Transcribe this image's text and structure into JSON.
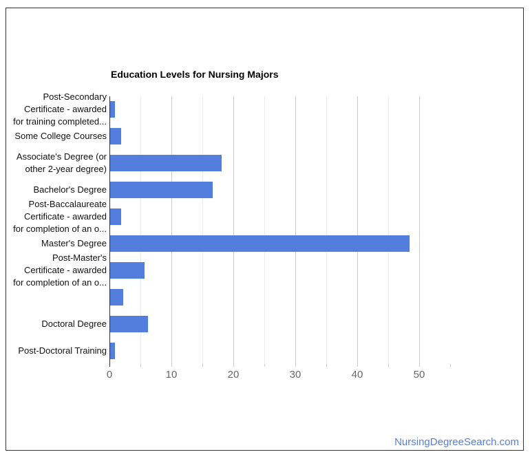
{
  "chart_data": {
    "type": "bar",
    "orientation": "horizontal",
    "title": "Education Levels for Nursing Majors",
    "categories": [
      "Post-Secondary Certificate - awarded for training completed...",
      "Some College Courses",
      "Associate's Degree (or other 2-year degree)",
      "Bachelor's Degree",
      "Post-Baccalaureate Certificate - awarded for completion of an o...",
      "Master's Degree",
      "Post-Master's Certificate - awarded for completion of an o...",
      "",
      "Doctoral Degree",
      "Post-Doctoral Training"
    ],
    "categories_lines": [
      [
        "Post-Secondary",
        "Certificate - awarded",
        "for training completed..."
      ],
      [
        "Some College Courses"
      ],
      [
        "Associate's Degree (or",
        "other 2-year degree)"
      ],
      [
        "Bachelor's Degree"
      ],
      [
        "Post-Baccalaureate",
        "Certificate - awarded",
        "for completion of an o..."
      ],
      [
        "Master's Degree"
      ],
      [
        "Post-Master's",
        "Certificate - awarded",
        "for completion of an o..."
      ],
      [
        ""
      ],
      [
        "Doctoral Degree"
      ],
      [
        "Post-Doctoral Training"
      ]
    ],
    "values": [
      0.8,
      1.8,
      18,
      16.5,
      1.8,
      48.3,
      5.5,
      2.1,
      6.1,
      0.8
    ],
    "xlabel": "",
    "ylabel": "",
    "xlim": [
      0,
      55
    ],
    "xticks": [
      0,
      10,
      20,
      30,
      40,
      50
    ],
    "minor_grid_step": 5,
    "major_grid_step": 10,
    "grid": true,
    "legend": "none"
  },
  "footer": {
    "watermark": "NursingDegreeSearch.com"
  },
  "colors": {
    "bar": "#537EDD",
    "axis_line": "#2F2F2F",
    "grid_major": "#CCCCCC",
    "grid_minor": "#EBEBEB",
    "tick_label": "#666666",
    "tick_mark": "#CCCCCC",
    "category_label": "#111111",
    "title": "#000000",
    "watermark": "#5A7FD3",
    "frame_border": "#333333",
    "background": "#FFFFFF"
  }
}
